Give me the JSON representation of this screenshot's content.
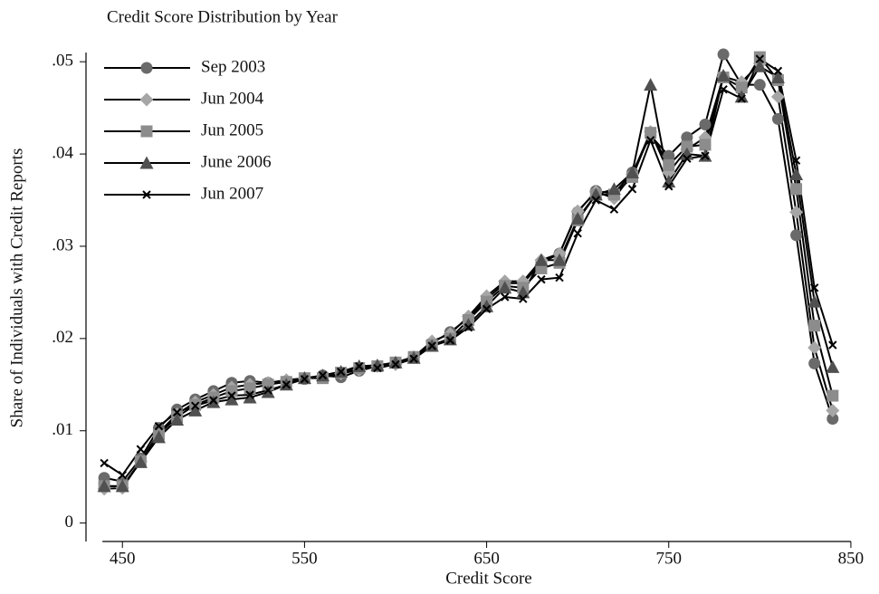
{
  "chart_data": {
    "type": "line",
    "title": "Credit Score Distribution by Year",
    "x_label": "Credit Score",
    "y_label": "Share of Individuals with Credit Reports",
    "x": [
      440,
      450,
      460,
      470,
      480,
      490,
      500,
      510,
      520,
      530,
      540,
      550,
      560,
      570,
      580,
      590,
      600,
      610,
      620,
      630,
      640,
      650,
      660,
      670,
      680,
      690,
      700,
      710,
      720,
      730,
      740,
      750,
      760,
      770,
      780,
      790,
      800,
      810,
      820,
      830,
      840
    ],
    "xlim": [
      430,
      857
    ],
    "ylim": [
      -0.002,
      0.051
    ],
    "xticks": [
      450,
      550,
      650,
      750,
      850
    ],
    "yticks": [
      0,
      {
        "value": 0.01,
        "label": ".01"
      },
      {
        "value": 0.02,
        "label": ".02"
      },
      {
        "value": 0.03,
        "label": ".03"
      },
      {
        "value": 0.04,
        "label": ".04"
      },
      {
        "value": 0.05,
        "label": ".05"
      }
    ],
    "legend": "upper-left",
    "series": [
      {
        "name": "Sep 2003",
        "marker": "circle",
        "color": "#6a6a6a",
        "values": [
          0.0049,
          0.0045,
          0.007,
          0.0103,
          0.0123,
          0.0134,
          0.0143,
          0.0152,
          0.0154,
          0.0152,
          0.0152,
          0.0156,
          0.016,
          0.0158,
          0.0165,
          0.017,
          0.0174,
          0.018,
          0.0195,
          0.0207,
          0.0222,
          0.0243,
          0.026,
          0.026,
          0.0282,
          0.0292,
          0.0337,
          0.036,
          0.0357,
          0.038,
          0.042,
          0.0398,
          0.0418,
          0.0432,
          0.0508,
          0.0475,
          0.0475,
          0.0438,
          0.0312,
          0.0173,
          0.0113
        ]
      },
      {
        "name": "Jun 2004",
        "marker": "diamond",
        "color": "#a6a6a6",
        "values": [
          0.0037,
          0.0038,
          0.0067,
          0.0098,
          0.0118,
          0.0131,
          0.0139,
          0.0147,
          0.015,
          0.0152,
          0.0155,
          0.0157,
          0.0158,
          0.0162,
          0.0166,
          0.017,
          0.0172,
          0.018,
          0.0197,
          0.0205,
          0.0224,
          0.0246,
          0.0262,
          0.0262,
          0.0285,
          0.0292,
          0.0338,
          0.0359,
          0.0352,
          0.0378,
          0.0424,
          0.038,
          0.0405,
          0.0418,
          0.0484,
          0.0478,
          0.0498,
          0.0462,
          0.0337,
          0.019,
          0.0122
        ]
      },
      {
        "name": "Jun 2005",
        "marker": "square",
        "color": "#8c8c8c",
        "values": [
          0.004,
          0.004,
          0.0067,
          0.0096,
          0.0115,
          0.0128,
          0.0136,
          0.0143,
          0.0146,
          0.015,
          0.0153,
          0.0157,
          0.0157,
          0.0163,
          0.0168,
          0.017,
          0.0174,
          0.018,
          0.0193,
          0.02,
          0.022,
          0.024,
          0.0257,
          0.0255,
          0.0276,
          0.0282,
          0.0328,
          0.0356,
          0.0356,
          0.0375,
          0.0423,
          0.0388,
          0.0408,
          0.041,
          0.0483,
          0.0472,
          0.0505,
          0.048,
          0.0362,
          0.0214,
          0.0138
        ]
      },
      {
        "name": "June 2006",
        "marker": "triangle",
        "color": "#505050",
        "values": [
          0.004,
          0.004,
          0.0066,
          0.0093,
          0.0112,
          0.0122,
          0.0131,
          0.0134,
          0.0136,
          0.0142,
          0.015,
          0.0157,
          0.016,
          0.0164,
          0.017,
          0.0171,
          0.0174,
          0.0179,
          0.0192,
          0.0199,
          0.0215,
          0.0235,
          0.0255,
          0.025,
          0.0285,
          0.0285,
          0.033,
          0.0356,
          0.0362,
          0.038,
          0.0475,
          0.037,
          0.04,
          0.0398,
          0.0485,
          0.0462,
          0.0495,
          0.0483,
          0.0378,
          0.024,
          0.0169
        ]
      },
      {
        "name": "Jun 2007",
        "marker": "x",
        "color": "#000000",
        "values": [
          0.0065,
          0.0052,
          0.008,
          0.0105,
          0.012,
          0.0127,
          0.0133,
          0.0138,
          0.0139,
          0.0144,
          0.015,
          0.0156,
          0.016,
          0.0164,
          0.017,
          0.0168,
          0.0172,
          0.0178,
          0.0192,
          0.0198,
          0.0212,
          0.0232,
          0.0245,
          0.0243,
          0.0264,
          0.0266,
          0.0314,
          0.035,
          0.034,
          0.0362,
          0.0415,
          0.0365,
          0.0395,
          0.0398,
          0.047,
          0.046,
          0.0503,
          0.049,
          0.0393,
          0.0255,
          0.0193
        ]
      }
    ]
  }
}
